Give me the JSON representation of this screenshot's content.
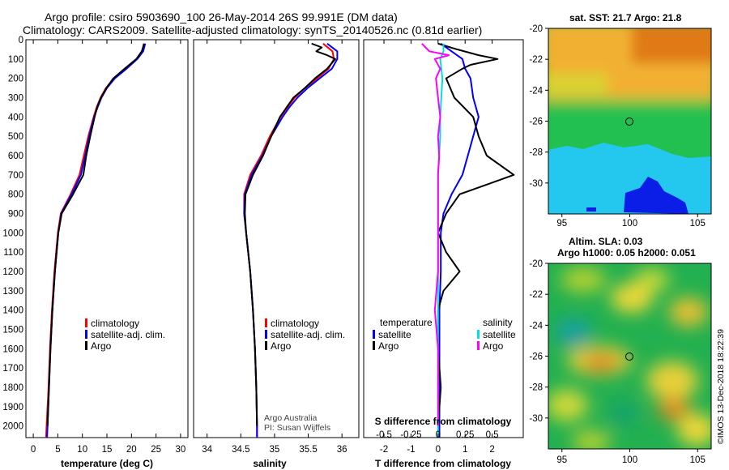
{
  "header": {
    "line1": "Argo profile: csiro 5903690_100 26-May-2014 26S 99.991E (DM data)",
    "line2": "Climatology: CARS2009. Satellite-adjusted climatology: synTS_20140526.nc (0.81d earlier)"
  },
  "colors": {
    "climatology": "#ff0000",
    "satellite": "#0000ff",
    "argo": "#000000",
    "satellite_s": "#00e0e0",
    "argo_s": "#ff00ff"
  },
  "depth_axis": {
    "ylim": [
      0,
      2060
    ],
    "ticks": [
      0,
      100,
      200,
      300,
      400,
      500,
      600,
      700,
      800,
      900,
      1000,
      1100,
      1200,
      1300,
      1400,
      1500,
      1600,
      1700,
      1800,
      1900,
      2000
    ],
    "tick_labels": [
      "0",
      "100",
      "200",
      "300",
      "400",
      "500",
      "600",
      "700",
      "800",
      "900",
      "1000",
      "1100",
      "1200",
      "1300",
      "1400",
      "1500",
      "1600",
      "1700",
      "1800",
      "1900",
      "2000"
    ]
  },
  "chart_data": [
    {
      "type": "line",
      "id": "temperature",
      "xlabel": "temperature (deg C)",
      "xlim": [
        -1.5,
        31.5
      ],
      "xticks": [
        0,
        5,
        10,
        15,
        20,
        25,
        30
      ],
      "xtick_labels": [
        "0",
        "5",
        "10",
        "15",
        "20",
        "25",
        "30"
      ],
      "legend": [
        "climatology",
        "satellite-adj. clim.",
        "Argo"
      ],
      "series": [
        {
          "name": "climatology",
          "color": "#ff0000",
          "depth": [
            20,
            60,
            100,
            150,
            200,
            250,
            300,
            350,
            400,
            500,
            600,
            700,
            800,
            900,
            1000,
            1200,
            1400,
            1600,
            1800,
            2000,
            2060
          ],
          "values": [
            22.5,
            22.2,
            21.0,
            18.8,
            16.4,
            14.8,
            13.7,
            12.9,
            12.3,
            11.2,
            10.3,
            9.4,
            7.6,
            5.6,
            5.0,
            4.3,
            3.8,
            3.4,
            3.1,
            2.7,
            2.6
          ]
        },
        {
          "name": "satellite-adj. clim.",
          "color": "#0000ff",
          "depth": [
            20,
            60,
            100,
            150,
            200,
            250,
            300,
            350,
            400,
            500,
            600,
            700,
            800,
            900,
            1000,
            1200,
            1400,
            1600,
            1800,
            2000,
            2060
          ],
          "values": [
            22.8,
            22.4,
            21.2,
            19.0,
            16.6,
            15.0,
            13.9,
            13.1,
            12.4,
            11.4,
            10.6,
            9.7,
            7.8,
            5.7,
            5.1,
            4.4,
            3.9,
            3.5,
            3.2,
            2.9,
            2.8
          ]
        },
        {
          "name": "Argo",
          "color": "#000000",
          "depth": [
            20,
            60,
            100,
            150,
            200,
            250,
            300,
            350,
            400,
            500,
            600,
            700,
            800,
            900,
            1000,
            1200,
            1400,
            1600,
            1800,
            2000
          ],
          "values": [
            22.6,
            22.1,
            21.0,
            18.6,
            16.3,
            14.9,
            13.8,
            13.0,
            12.5,
            11.6,
            10.8,
            10.2,
            8.1,
            5.8,
            5.1,
            4.4,
            3.9,
            3.5,
            3.2,
            2.9
          ]
        }
      ]
    },
    {
      "type": "line",
      "id": "salinity",
      "xlabel": "salinity",
      "xlim": [
        33.8,
        36.25
      ],
      "xticks": [
        34,
        34.5,
        35,
        35.5,
        36
      ],
      "xtick_labels": [
        "34",
        "34.5",
        "35",
        "35.5",
        "36"
      ],
      "legend": [
        "climatology",
        "satellite-adj. clim.",
        "Argo"
      ],
      "annotations": [
        "Argo Australia",
        "PI: Susan Wijffels"
      ],
      "series": [
        {
          "name": "climatology",
          "color": "#ff0000",
          "depth": [
            20,
            60,
            100,
            150,
            200,
            250,
            300,
            350,
            400,
            500,
            600,
            700,
            800,
            900,
            1000,
            1200,
            1400,
            1600,
            1800,
            2000,
            2060
          ],
          "values": [
            35.72,
            35.86,
            35.88,
            35.8,
            35.63,
            35.45,
            35.3,
            35.19,
            35.09,
            34.93,
            34.8,
            34.64,
            34.55,
            34.55,
            34.58,
            34.64,
            34.68,
            34.71,
            34.73,
            34.74,
            34.74
          ]
        },
        {
          "name": "satellite-adj. clim.",
          "color": "#0000ff",
          "depth": [
            20,
            60,
            100,
            150,
            200,
            250,
            300,
            350,
            400,
            500,
            600,
            700,
            800,
            900,
            1000,
            1200,
            1400,
            1600,
            1800,
            2000,
            2060
          ],
          "values": [
            35.78,
            35.93,
            35.93,
            35.85,
            35.67,
            35.49,
            35.34,
            35.22,
            35.12,
            34.95,
            34.82,
            34.66,
            34.56,
            34.55,
            34.58,
            34.64,
            34.68,
            34.71,
            34.73,
            34.74,
            34.74
          ]
        },
        {
          "name": "Argo",
          "color": "#000000",
          "depth": [
            20,
            40,
            60,
            80,
            100,
            150,
            200,
            250,
            300,
            350,
            400,
            500,
            600,
            700,
            800,
            900,
            1000,
            1200,
            1400,
            1600,
            1800,
            2000
          ],
          "values": [
            35.55,
            35.7,
            35.62,
            35.78,
            35.9,
            35.78,
            35.6,
            35.45,
            35.28,
            35.18,
            35.08,
            34.95,
            34.83,
            34.68,
            34.57,
            34.56,
            34.58,
            34.64,
            34.68,
            34.71,
            34.73,
            34.74
          ]
        }
      ]
    },
    {
      "type": "line",
      "id": "differences",
      "xlabel": "T difference from climatology",
      "xlabel_top": "S difference from climatology",
      "xlim": [
        -2.75,
        3.15
      ],
      "xticks": [
        -2,
        -1,
        0,
        1,
        2
      ],
      "xtick_labels": [
        "-2",
        "-1",
        "0",
        "1",
        "2"
      ],
      "s_ticks": [
        -0.5,
        -0.25,
        0,
        0.25,
        0.5
      ],
      "s_tick_labels": [
        "-0.5",
        "-0.25",
        "0",
        "0.25",
        "0.5"
      ],
      "legend_left_title": "temperature",
      "legend_right_title": "salinity",
      "legend_left": [
        "satellite",
        "Argo"
      ],
      "legend_right": [
        "satellite",
        "Argo"
      ],
      "series": [
        {
          "name": "T satellite",
          "color": "#0000ff",
          "depth": [
            20,
            60,
            100,
            150,
            200,
            300,
            400,
            500,
            600,
            700,
            800,
            900,
            1000,
            1200,
            1400,
            1600,
            1800,
            2000,
            2060
          ],
          "values": [
            0.1,
            0.5,
            0.9,
            1.0,
            1.2,
            1.3,
            1.5,
            1.3,
            1.1,
            0.9,
            0.5,
            0.2,
            0.1,
            0.1,
            0.05,
            0.05,
            0.05,
            0.05,
            0.05
          ]
        },
        {
          "name": "T Argo",
          "color": "#000000",
          "depth": [
            20,
            50,
            80,
            100,
            130,
            150,
            200,
            300,
            400,
            500,
            600,
            700,
            750,
            800,
            900,
            1000,
            1100,
            1200,
            1300,
            1400,
            1600,
            1800,
            2000
          ],
          "values": [
            0.0,
            0.7,
            1.5,
            2.2,
            1.2,
            0.9,
            0.3,
            0.6,
            1.3,
            1.5,
            1.8,
            2.8,
            1.8,
            0.8,
            0.3,
            0.0,
            0.3,
            0.8,
            0.2,
            0.0,
            0.0,
            0.1,
            0.0
          ]
        },
        {
          "name": "S satellite",
          "color": "#00e0e0",
          "depth": [
            20,
            60,
            100,
            200,
            300,
            400,
            500,
            600,
            700,
            800,
            900,
            1000,
            1200,
            1400,
            1600,
            1800,
            2000,
            2060
          ],
          "values": [
            0.05,
            0.05,
            0.02,
            0.04,
            0.03,
            0.02,
            0.02,
            0.01,
            0.0,
            0.0,
            0.0,
            0.0,
            0.0,
            0.0,
            0.0,
            0.0,
            0.0,
            0.0
          ]
        },
        {
          "name": "S Argo",
          "color": "#ff00ff",
          "depth": [
            20,
            60,
            80,
            100,
            150,
            200,
            300,
            400,
            500,
            600,
            700,
            800,
            900,
            1000,
            1200,
            1400,
            1600,
            1800,
            2000
          ],
          "values": [
            -0.15,
            -0.08,
            0.1,
            -0.03,
            0.02,
            -0.02,
            0.0,
            0.02,
            0.0,
            0.01,
            0.0,
            0.0,
            0.0,
            0.0,
            0.0,
            -0.03,
            0.0,
            0.0,
            0.0
          ]
        }
      ]
    },
    {
      "type": "heatmap",
      "id": "sst-map",
      "title": "sat. SST: 21.7 Argo: 21.8",
      "xlim": [
        94,
        106
      ],
      "ylim": [
        -32,
        -20
      ],
      "xticks": [
        95,
        100,
        105
      ],
      "xtick_labels": [
        "95",
        "100",
        "105"
      ],
      "yticks": [
        -20,
        -22,
        -24,
        -26,
        -28,
        -30
      ],
      "ytick_labels": [
        "-20",
        "-22",
        "-24",
        "-26",
        "-28",
        "-30"
      ],
      "marker": [
        100,
        -26
      ],
      "note": "warm (orange) in north, green mid band, cyan and blue cold pool in south-east"
    },
    {
      "type": "heatmap",
      "id": "sla-map",
      "title": "Altim. SLA: 0.03",
      "subtitle": "Argo h1000: 0.05 h2000: 0.051",
      "xlim": [
        94,
        106
      ],
      "ylim": [
        -32,
        -20
      ],
      "xticks": [
        95,
        100,
        105
      ],
      "xtick_labels": [
        "95",
        "100",
        "105"
      ],
      "yticks": [
        -20,
        -22,
        -24,
        -26,
        -28,
        -30
      ],
      "ytick_labels": [
        "-20",
        "-22",
        "-24",
        "-26",
        "-28",
        "-30"
      ],
      "marker": [
        100,
        -26
      ],
      "note": "mostly green with scattered yellow and orange eddies"
    }
  ],
  "footer": {
    "credit": "©IMOS 13-Dec-2018 18:22:39"
  }
}
